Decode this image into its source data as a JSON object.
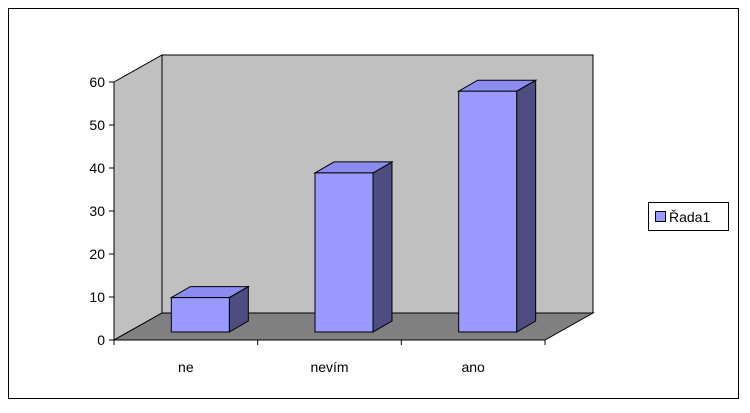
{
  "chart_data": {
    "type": "bar",
    "categories": [
      "ne",
      "nevím",
      "ano"
    ],
    "series": [
      {
        "name": "Řada1",
        "values": [
          8,
          37,
          56
        ]
      }
    ],
    "ylim": [
      0,
      60
    ],
    "yticks": [
      "0",
      "10",
      "20",
      "30",
      "40",
      "50",
      "60"
    ],
    "title": "",
    "xlabel": "",
    "ylabel": "",
    "grid": false,
    "three_d": true,
    "legend_position": "right"
  },
  "colors": {
    "bar_front": "#9999ff",
    "bar_top": "#8c8cf0",
    "bar_side": "#4d4d80",
    "back_wall": "#c0c0c0",
    "side_wall": "#c0c0c0",
    "floor": "#808080",
    "outline": "#000000"
  }
}
